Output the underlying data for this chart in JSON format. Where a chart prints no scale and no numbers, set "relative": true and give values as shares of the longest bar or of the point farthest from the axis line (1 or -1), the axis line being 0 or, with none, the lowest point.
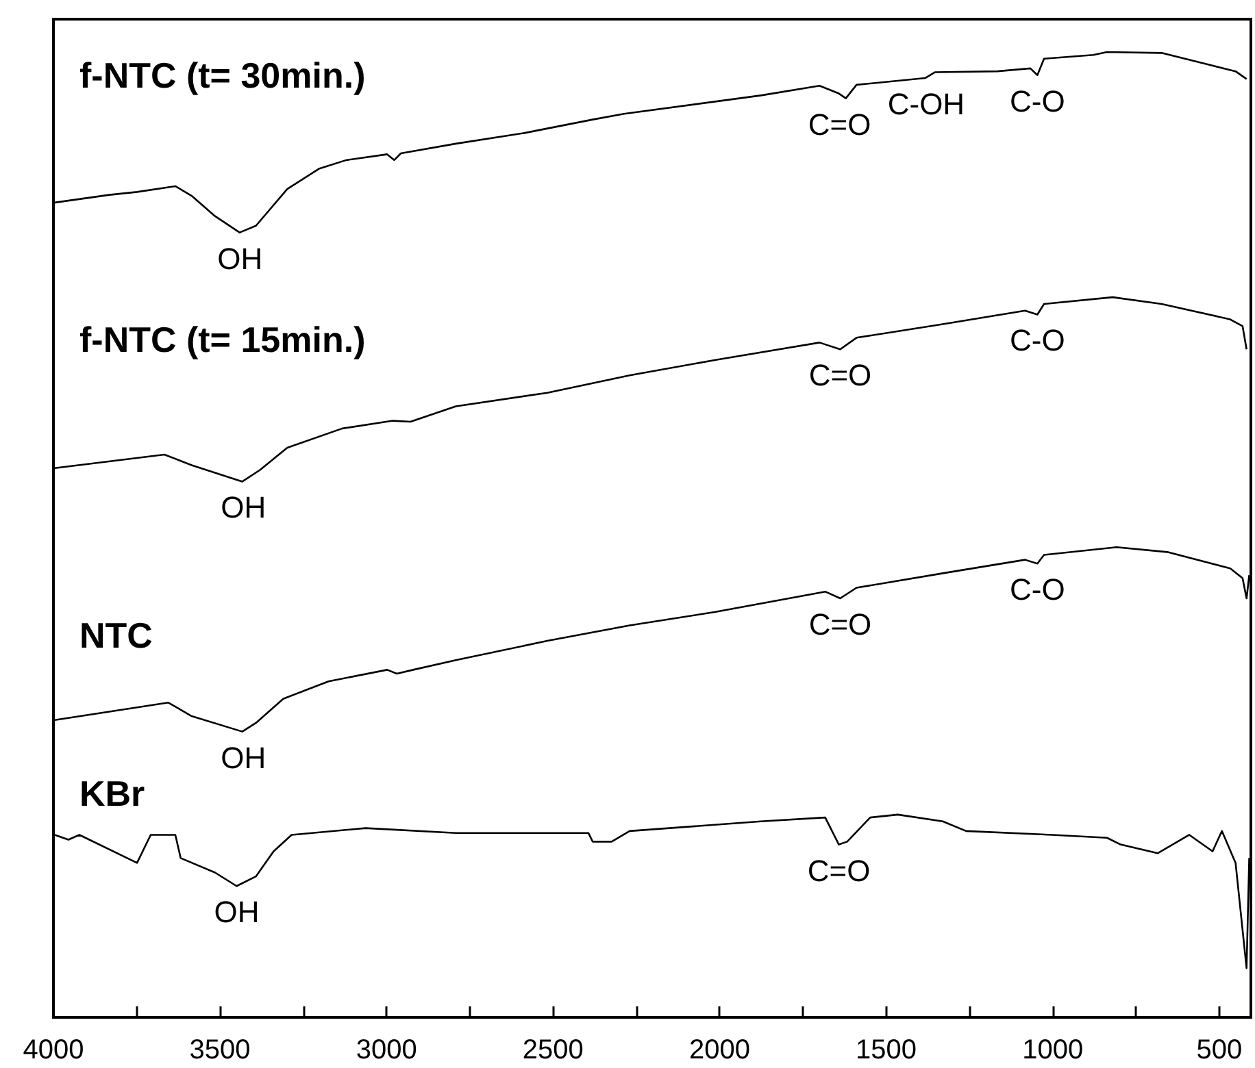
{
  "chart_data": {
    "type": "line",
    "relative": true,
    "marker": "none",
    "xlim": [
      4000,
      405
    ],
    "xticks": [
      4000,
      {
        "value": 3750,
        "label": null
      },
      3500,
      {
        "value": 3250,
        "label": null
      },
      3000,
      {
        "value": 2750,
        "label": null
      },
      2500,
      {
        "value": 2250,
        "label": null
      },
      2000,
      {
        "value": 1750,
        "label": null
      },
      1500,
      {
        "value": 1250,
        "label": null
      },
      1000,
      {
        "value": 750,
        "label": null
      },
      500
    ],
    "series": [
      {
        "name": "f-NTC (t= 30min.)",
        "color": "#000000",
        "x": [
          3996,
          3832,
          3749,
          3634,
          3585,
          3515,
          3441,
          3392,
          3298,
          3203,
          3121,
          2998,
          2977,
          2957,
          2792,
          2587,
          2381,
          2287,
          1876,
          1700,
          1642,
          1621,
          1589,
          1383,
          1354,
          1166,
          1067,
          1046,
          1026,
          878,
          837,
          673,
          533,
          451,
          418
        ],
        "values": [
          0.844,
          0.852,
          0.855,
          0.861,
          0.851,
          0.83,
          0.813,
          0.82,
          0.858,
          0.879,
          0.888,
          0.894,
          0.888,
          0.895,
          0.905,
          0.916,
          0.93,
          0.936,
          0.955,
          0.965,
          0.957,
          0.952,
          0.966,
          0.973,
          0.979,
          0.98,
          0.983,
          0.976,
          0.993,
          0.997,
          1,
          0.999,
          0.987,
          0.98,
          0.972
        ]
      },
      {
        "name": "f-NTC (t= 15min.)",
        "color": "#000000",
        "x": [
          3996,
          3667,
          3585,
          3433,
          3380,
          3298,
          3133,
          2981,
          2928,
          2792,
          2517,
          2270,
          2012,
          1700,
          1638,
          1589,
          1330,
          1083,
          1046,
          1026,
          820,
          673,
          467,
          430,
          418
        ],
        "values": [
          0.569,
          0.583,
          0.572,
          0.555,
          0.567,
          0.59,
          0.61,
          0.618,
          0.617,
          0.633,
          0.647,
          0.665,
          0.681,
          0.699,
          0.692,
          0.704,
          0.718,
          0.732,
          0.728,
          0.739,
          0.746,
          0.739,
          0.723,
          0.716,
          0.692
        ]
      },
      {
        "name": "NTC",
        "color": "#000000",
        "x": [
          3996,
          3655,
          3585,
          3433,
          3392,
          3310,
          3174,
          2998,
          2969,
          2920,
          2792,
          2517,
          2270,
          2012,
          1683,
          1638,
          1589,
          1330,
          1083,
          1046,
          1026,
          808,
          656,
          467,
          430,
          418,
          410
        ],
        "values": [
          0.308,
          0.326,
          0.312,
          0.296,
          0.305,
          0.33,
          0.348,
          0.36,
          0.356,
          0.36,
          0.37,
          0.39,
          0.406,
          0.42,
          0.441,
          0.434,
          0.445,
          0.46,
          0.474,
          0.47,
          0.479,
          0.487,
          0.482,
          0.465,
          0.455,
          0.434,
          0.458
        ]
      },
      {
        "name": "KBr",
        "color": "#000000",
        "x": [
          3996,
          3955,
          3922,
          3749,
          3708,
          3634,
          3618,
          3515,
          3450,
          3392,
          3339,
          3285,
          3063,
          2792,
          2394,
          2381,
          2324,
          2270,
          1876,
          1683,
          1642,
          1617,
          1548,
          1465,
          1330,
          1260,
          1001,
          837,
          796,
          685,
          590,
          520,
          492,
          451,
          418,
          410
        ],
        "values": [
          0.189,
          0.184,
          0.189,
          0.16,
          0.189,
          0.189,
          0.165,
          0.15,
          0.136,
          0.146,
          0.172,
          0.189,
          0.196,
          0.191,
          0.191,
          0.182,
          0.182,
          0.193,
          0.203,
          0.207,
          0.179,
          0.182,
          0.207,
          0.21,
          0.203,
          0.193,
          0.189,
          0.186,
          0.179,
          0.17,
          0.189,
          0.172,
          0.193,
          0.16,
          0.051,
          0.165
        ]
      }
    ],
    "annotations": [
      {
        "text": "OH",
        "x": 3440,
        "y": 0.813
      },
      {
        "text": "C=O",
        "x": 1640,
        "y": 0.952
      },
      {
        "text": "C-OH",
        "x": 1380,
        "y": 0.973
      },
      {
        "text": "C-O",
        "x": 1046,
        "y": 0.976
      },
      {
        "text": "OH",
        "x": 3430,
        "y": 0.555
      },
      {
        "text": "C=O",
        "x": 1638,
        "y": 0.692
      },
      {
        "text": "C-O",
        "x": 1046,
        "y": 0.728
      },
      {
        "text": "OH",
        "x": 3430,
        "y": 0.296
      },
      {
        "text": "C=O",
        "x": 1638,
        "y": 0.434
      },
      {
        "text": "C-O",
        "x": 1046,
        "y": 0.47
      },
      {
        "text": "OH",
        "x": 3450,
        "y": 0.136
      },
      {
        "text": "C=O",
        "x": 1642,
        "y": 0.179
      }
    ]
  }
}
